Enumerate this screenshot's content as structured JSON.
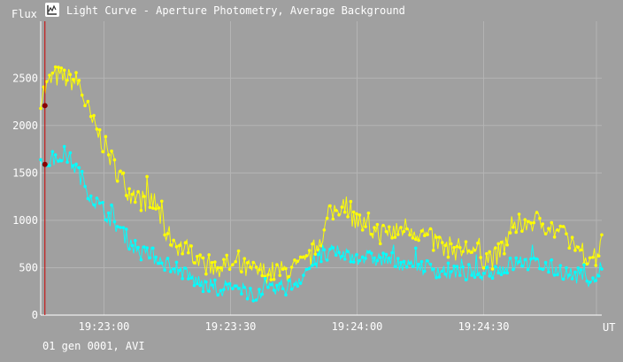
{
  "window": {
    "title": "Light Curve - Aperture Photometry, Average Background",
    "icon": "light-curve-app-icon"
  },
  "status": {
    "text": "01 gen 0001, AVI"
  },
  "colors": {
    "background": "#a0a0a0",
    "grid": "#b4b4b4",
    "axis": "#ffffff",
    "marker_line": "#cc0000",
    "marker_dot": "#880000"
  },
  "chart_data": {
    "type": "line",
    "title": "Light Curve - Aperture Photometry, Average Background",
    "xlabel": "UT",
    "ylabel": "Flux",
    "x_ticks": [
      "19:23:00",
      "19:23:30",
      "19:24:00",
      "19:24:30"
    ],
    "y_ticks": [
      0,
      500,
      1000,
      1500,
      2000,
      2500
    ],
    "ylim": [
      0,
      3100
    ],
    "x_range_seconds_from_1922_45": [
      0,
      133
    ],
    "grid": true,
    "markers": true,
    "current_frame_line": {
      "x": "19:22:46",
      "values": [
        2210,
        1590
      ]
    },
    "series": [
      {
        "color": "#ffff00",
        "x": [
          "19:22:45",
          "19:22:48",
          "19:22:51",
          "19:22:54",
          "19:22:57",
          "19:23:00",
          "19:23:03",
          "19:23:06",
          "19:23:09",
          "19:23:12",
          "19:23:15",
          "19:23:18",
          "19:23:21",
          "19:23:24",
          "19:23:27",
          "19:23:30",
          "19:23:33",
          "19:23:36",
          "19:23:39",
          "19:23:42",
          "19:23:45",
          "19:23:48",
          "19:23:51",
          "19:23:54",
          "19:23:57",
          "19:24:00",
          "19:24:03",
          "19:24:06",
          "19:24:09",
          "19:24:12",
          "19:24:15",
          "19:24:18",
          "19:24:21",
          "19:24:24",
          "19:24:27",
          "19:24:30",
          "19:24:33",
          "19:24:36",
          "19:24:39",
          "19:24:42",
          "19:24:45",
          "19:24:48",
          "19:24:51",
          "19:24:54",
          "19:24:57",
          "19:24:58"
        ],
        "values": [
          2300,
          2520,
          2500,
          2450,
          2050,
          1800,
          1530,
          1300,
          1210,
          1190,
          850,
          720,
          670,
          540,
          520,
          520,
          490,
          460,
          450,
          460,
          480,
          540,
          790,
          1080,
          1200,
          1000,
          900,
          860,
          880,
          940,
          870,
          780,
          730,
          680,
          700,
          610,
          600,
          820,
          980,
          990,
          960,
          860,
          760,
          640,
          630,
          900
        ]
      },
      {
        "color": "#00ffff",
        "x": [
          "19:22:45",
          "19:22:48",
          "19:22:51",
          "19:22:54",
          "19:22:57",
          "19:23:00",
          "19:23:03",
          "19:23:06",
          "19:23:09",
          "19:23:12",
          "19:23:15",
          "19:23:18",
          "19:23:21",
          "19:23:24",
          "19:23:27",
          "19:23:30",
          "19:23:33",
          "19:23:36",
          "19:23:39",
          "19:23:42",
          "19:23:45",
          "19:23:48",
          "19:23:51",
          "19:23:54",
          "19:23:57",
          "19:24:00",
          "19:24:03",
          "19:24:06",
          "19:24:09",
          "19:24:12",
          "19:24:15",
          "19:24:18",
          "19:24:21",
          "19:24:24",
          "19:24:27",
          "19:24:30",
          "19:24:33",
          "19:24:36",
          "19:24:39",
          "19:24:42",
          "19:24:45",
          "19:24:48",
          "19:24:51",
          "19:24:54",
          "19:24:57",
          "19:24:58"
        ],
        "values": [
          1580,
          1650,
          1700,
          1500,
          1250,
          1100,
          950,
          780,
          650,
          620,
          540,
          480,
          380,
          310,
          280,
          290,
          250,
          230,
          250,
          280,
          330,
          470,
          600,
          650,
          640,
          620,
          600,
          590,
          570,
          540,
          520,
          490,
          460,
          430,
          450,
          460,
          480,
          520,
          560,
          540,
          510,
          470,
          420,
          400,
          380,
          560
        ]
      }
    ]
  }
}
